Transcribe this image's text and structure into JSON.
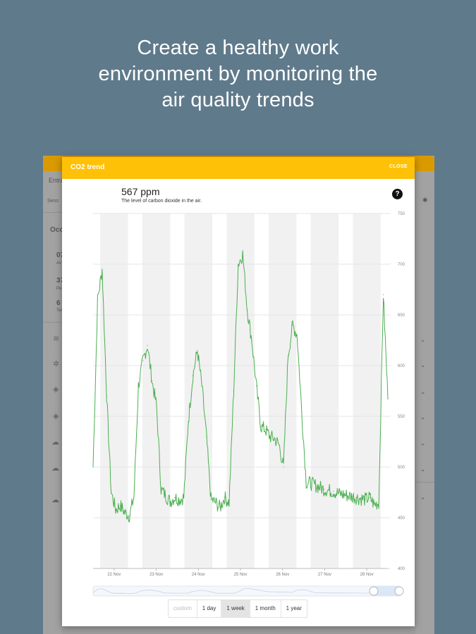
{
  "headline": {
    "line1": "Create a healthy work",
    "line2": "environment by monitoring the",
    "line3": "air quality trends"
  },
  "background_app": {
    "fragments": [
      "Entra",
      "Sens",
      "Occ",
      "07",
      "Av",
      "37",
      "Pe",
      "6",
      "Ter"
    ],
    "chevron_icons": [
      "chevron-down-icon",
      "chevron-down-icon",
      "chevron-down-icon",
      "chevron-down-icon",
      "chevron-down-icon",
      "chevron-down-icon",
      "chevron-up-icon"
    ],
    "settings_icon": "gear-icon"
  },
  "dialog": {
    "title": "CO2 trend",
    "close_label": "CLOSE",
    "reading_value": "567 ppm",
    "reading_description": "The level of carbon dioxide in the air.",
    "help_icon": "help-icon",
    "help_glyph": "?"
  },
  "colors": {
    "header": "#ffc107",
    "line": "#4caf50",
    "background": "#5f7a8b"
  },
  "chart_data": {
    "type": "line",
    "title": "",
    "xlabel": "",
    "ylabel": "",
    "ylim": [
      400,
      750
    ],
    "y_ticks": [
      400,
      450,
      500,
      550,
      600,
      650,
      700,
      750
    ],
    "x_tick_labels": [
      "22 Nov",
      "23 Nov",
      "24 Nov",
      "25 Nov",
      "26 Nov",
      "27 Nov",
      "28 Nov"
    ],
    "grid": true,
    "day_bands": true,
    "series": [
      {
        "values": [
          500,
          665,
          695,
          570,
          475,
          458,
          462,
          455,
          452,
          470,
          580,
          605,
          620,
          585,
          560,
          478,
          472,
          466,
          470,
          468,
          470,
          545,
          590,
          615,
          580,
          530,
          468,
          465,
          460,
          470,
          465,
          575,
          700,
          710,
          655,
          625,
          580,
          540,
          537,
          530,
          528,
          522,
          500,
          610,
          640,
          630,
          555,
          485,
          484,
          482,
          480,
          478,
          477,
          476,
          474,
          473,
          472,
          471,
          470,
          469,
          468,
          470,
          463,
          465,
          670,
          567
        ]
      }
    ]
  },
  "range_selector": {
    "options": [
      "custom",
      "1 day",
      "1 week",
      "1 month",
      "1 year"
    ],
    "selected": "1 week"
  }
}
